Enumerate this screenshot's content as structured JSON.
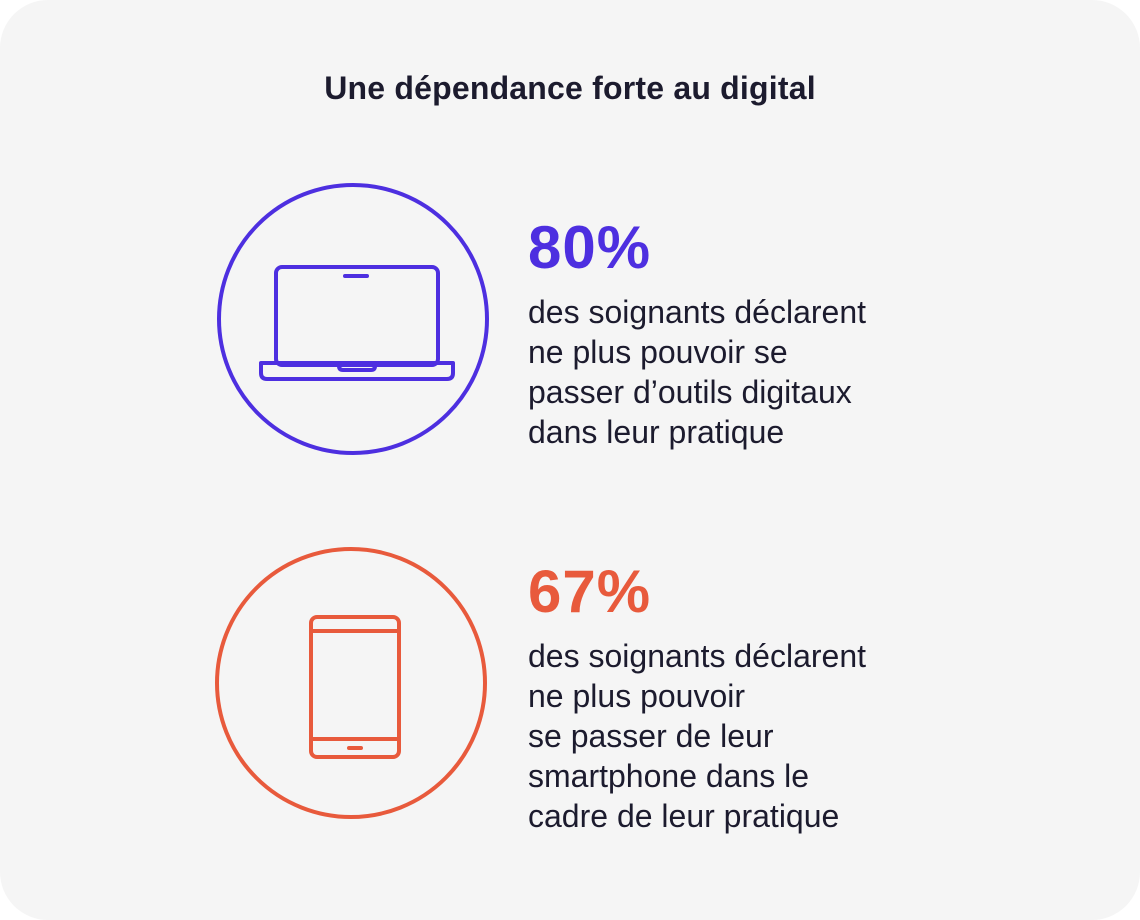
{
  "title": "Une dépendance forte au digital",
  "colors": {
    "purple": "#4d2fe0",
    "orange": "#e85a3c",
    "text": "#1c1b2e",
    "background": "#f5f5f5"
  },
  "stats": [
    {
      "icon": "laptop-icon",
      "value": "80%",
      "lines": [
        "des soignants déclarent",
        "ne plus pouvoir se",
        "passer d’outils digitaux",
        "dans leur pratique"
      ]
    },
    {
      "icon": "smartphone-icon",
      "value": "67%",
      "lines": [
        "des soignants déclarent",
        "ne plus pouvoir",
        "se passer de leur",
        "smartphone dans le",
        "cadre de leur pratique"
      ]
    }
  ]
}
